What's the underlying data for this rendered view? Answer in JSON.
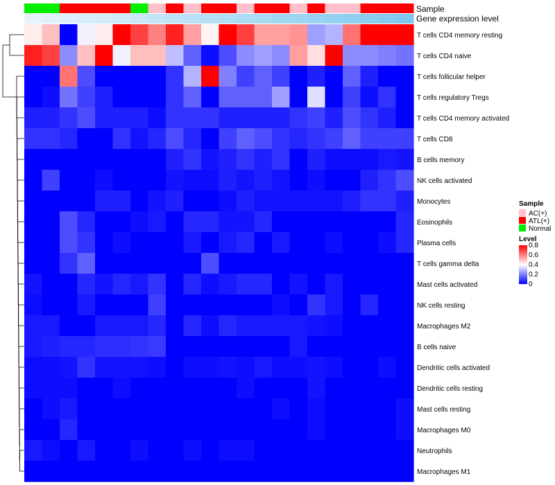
{
  "chart_data": {
    "type": "heatmap",
    "title": "",
    "annotation_rows": [
      {
        "name": "Sample",
        "kind": "categorical",
        "values": [
          "Normal",
          "Normal",
          "ATL(+)",
          "ATL(+)",
          "ATL(+)",
          "ATL(+)",
          "Normal",
          "AC(+)",
          "ATL(+)",
          "AC(+)",
          "ATL(+)",
          "ATL(+)",
          "AC(+)",
          "ATL(+)",
          "ATL(+)",
          "AC(+)",
          "ATL(+)",
          "AC(+)",
          "AC(+)",
          "ATL(+)",
          "ATL(+)",
          "ATL(+)"
        ]
      },
      {
        "name": "Gene expression level",
        "kind": "continuous",
        "values": [
          0.02,
          0.07,
          0.11,
          0.16,
          0.2,
          0.25,
          0.29,
          0.34,
          0.39,
          0.43,
          0.48,
          0.52,
          0.57,
          0.61,
          0.66,
          0.7,
          0.75,
          0.8,
          0.84,
          0.89,
          0.93,
          0.98
        ]
      }
    ],
    "rows": [
      "T cells CD4 memory resting",
      "T cells CD4 naive",
      "T cells follicular helper",
      "T cells regulatory  Tregs",
      "T cells CD4 memory activated",
      "T cells CD8",
      "B cells memory",
      "NK cells activated",
      "Monocytes",
      "Eosinophils",
      "Plasma cells",
      "T cells gamma delta",
      "Mast cells activated",
      "NK cells resting",
      "Macrophages M2",
      "B cells naive",
      "Dendritic cells activated",
      "Dendritic cells resting",
      "Mast cells resting",
      "Macrophages M0",
      "Neutrophils",
      "Macrophages M1"
    ],
    "values": [
      [
        0.43,
        0.5,
        0.0,
        0.38,
        0.43,
        0.8,
        0.7,
        0.6,
        0.75,
        0.55,
        0.42,
        0.8,
        0.7,
        0.55,
        0.55,
        0.57,
        0.25,
        0.28,
        0.62,
        0.8,
        0.8,
        0.8
      ],
      [
        0.75,
        0.7,
        0.22,
        0.5,
        0.8,
        0.38,
        0.5,
        0.5,
        0.3,
        0.15,
        0.02,
        0.12,
        0.22,
        0.25,
        0.22,
        0.55,
        0.45,
        0.8,
        0.22,
        0.22,
        0.2,
        0.18
      ],
      [
        0.0,
        0.0,
        0.62,
        0.12,
        0.0,
        0.0,
        0.0,
        0.0,
        0.08,
        0.28,
        0.8,
        0.2,
        0.1,
        0.15,
        0.1,
        0.0,
        0.05,
        0.0,
        0.15,
        0.05,
        0.0,
        0.0
      ],
      [
        0.0,
        0.02,
        0.18,
        0.1,
        0.05,
        0.0,
        0.0,
        0.0,
        0.08,
        0.15,
        0.0,
        0.15,
        0.15,
        0.15,
        0.25,
        0.0,
        0.35,
        0.0,
        0.1,
        0.02,
        0.08,
        0.0
      ],
      [
        0.05,
        0.05,
        0.08,
        0.12,
        0.05,
        0.05,
        0.05,
        0.02,
        0.08,
        0.08,
        0.08,
        0.05,
        0.05,
        0.05,
        0.05,
        0.08,
        0.1,
        0.05,
        0.12,
        0.08,
        0.05,
        0.0
      ],
      [
        0.08,
        0.08,
        0.06,
        0.0,
        0.0,
        0.08,
        0.03,
        0.06,
        0.12,
        0.06,
        0.0,
        0.1,
        0.15,
        0.12,
        0.08,
        0.06,
        0.08,
        0.1,
        0.15,
        0.1,
        0.1,
        0.1
      ],
      [
        0.0,
        0.0,
        0.0,
        0.0,
        0.0,
        0.0,
        0.0,
        0.0,
        0.05,
        0.08,
        0.03,
        0.05,
        0.08,
        0.05,
        0.08,
        0.0,
        0.05,
        0.02,
        0.02,
        0.02,
        0.04,
        0.03
      ],
      [
        0.0,
        0.1,
        0.0,
        0.0,
        0.02,
        0.0,
        0.0,
        0.0,
        0.03,
        0.02,
        0.02,
        0.05,
        0.03,
        0.05,
        0.03,
        0.0,
        0.02,
        0.0,
        0.0,
        0.05,
        0.08,
        0.12
      ],
      [
        0.0,
        0.0,
        0.0,
        0.0,
        0.05,
        0.05,
        0.0,
        0.03,
        0.05,
        0.0,
        0.0,
        0.02,
        0.05,
        0.03,
        0.03,
        0.03,
        0.03,
        0.03,
        0.05,
        0.08,
        0.08,
        0.05
      ],
      [
        0.0,
        0.0,
        0.12,
        0.06,
        0.0,
        0.0,
        0.02,
        0.04,
        0.0,
        0.06,
        0.06,
        0.03,
        0.03,
        0.06,
        0.0,
        0.0,
        0.0,
        0.0,
        0.0,
        0.0,
        0.0,
        0.06
      ],
      [
        0.0,
        0.0,
        0.12,
        0.08,
        0.0,
        0.02,
        0.0,
        0.0,
        0.0,
        0.04,
        0.0,
        0.04,
        0.06,
        0.0,
        0.04,
        0.0,
        0.0,
        0.02,
        0.0,
        0.0,
        0.02,
        0.06
      ],
      [
        0.0,
        0.0,
        0.08,
        0.15,
        0.0,
        0.0,
        0.0,
        0.0,
        0.0,
        0.0,
        0.12,
        0.0,
        0.0,
        0.0,
        0.0,
        0.0,
        0.0,
        0.0,
        0.0,
        0.0,
        0.0,
        0.0
      ],
      [
        0.03,
        0.0,
        0.0,
        0.06,
        0.03,
        0.06,
        0.04,
        0.08,
        0.0,
        0.06,
        0.02,
        0.04,
        0.06,
        0.06,
        0.0,
        0.03,
        0.0,
        0.04,
        0.0,
        0.0,
        0.0,
        0.0
      ],
      [
        0.02,
        0.0,
        0.0,
        0.04,
        0.0,
        0.0,
        0.0,
        0.1,
        0.0,
        0.0,
        0.0,
        0.0,
        0.0,
        0.0,
        0.02,
        0.0,
        0.08,
        0.04,
        0.0,
        0.06,
        0.0,
        0.0
      ],
      [
        0.04,
        0.04,
        0.0,
        0.0,
        0.04,
        0.04,
        0.04,
        0.06,
        0.0,
        0.06,
        0.02,
        0.06,
        0.04,
        0.04,
        0.04,
        0.04,
        0.03,
        0.02,
        0.0,
        0.0,
        0.0,
        0.0
      ],
      [
        0.04,
        0.05,
        0.06,
        0.06,
        0.07,
        0.07,
        0.08,
        0.09,
        0.0,
        0.0,
        0.0,
        0.0,
        0.0,
        0.0,
        0.0,
        0.04,
        0.0,
        0.0,
        0.0,
        0.0,
        0.0,
        0.0
      ],
      [
        0.02,
        0.02,
        0.03,
        0.08,
        0.03,
        0.03,
        0.03,
        0.02,
        0.0,
        0.02,
        0.02,
        0.03,
        0.02,
        0.04,
        0.02,
        0.02,
        0.03,
        0.02,
        0.0,
        0.0,
        0.02,
        0.0
      ],
      [
        0.02,
        0.02,
        0.02,
        0.0,
        0.0,
        0.02,
        0.0,
        0.0,
        0.0,
        0.0,
        0.0,
        0.0,
        0.02,
        0.0,
        0.0,
        0.0,
        0.03,
        0.0,
        0.0,
        0.0,
        0.0,
        0.0
      ],
      [
        0.0,
        0.02,
        0.04,
        0.0,
        0.0,
        0.0,
        0.0,
        0.0,
        0.0,
        0.0,
        0.0,
        0.0,
        0.0,
        0.0,
        0.02,
        0.0,
        0.02,
        0.0,
        0.0,
        0.0,
        0.0,
        0.02
      ],
      [
        0.0,
        0.0,
        0.06,
        0.0,
        0.0,
        0.0,
        0.0,
        0.0,
        0.0,
        0.0,
        0.0,
        0.0,
        0.0,
        0.0,
        0.0,
        0.0,
        0.02,
        0.0,
        0.0,
        0.0,
        0.0,
        0.02
      ],
      [
        0.04,
        0.02,
        0.0,
        0.04,
        0.0,
        0.0,
        0.02,
        0.0,
        0.0,
        0.02,
        0.0,
        0.02,
        0.02,
        0.0,
        0.0,
        0.0,
        0.0,
        0.0,
        0.0,
        0.0,
        0.0,
        0.0
      ],
      [
        0.0,
        0.0,
        0.0,
        0.0,
        0.0,
        0.0,
        0.0,
        0.0,
        0.0,
        0.0,
        0.0,
        0.0,
        0.0,
        0.0,
        0.0,
        0.0,
        0.0,
        0.0,
        0.0,
        0.0,
        0.0,
        0.0
      ]
    ],
    "row_dendrogram": true,
    "column_dendrogram": false,
    "legends": {
      "sample": {
        "title": "Sample",
        "entries": [
          "AC(+)",
          "ATL(+)",
          "Normal"
        ]
      },
      "level": {
        "title": "Level",
        "range": [
          0,
          0.8
        ],
        "ticks": [
          "0.8",
          "0.6",
          "0.4",
          "0.2",
          "0"
        ]
      }
    },
    "colors": {
      "low": "#0000ff",
      "mid": "#ffffff",
      "high": "#ff0000",
      "AC(+)": "#ffc0cb",
      "ATL(+)": "#ff0000",
      "Normal": "#00ee00",
      "expr_low": "#e8f4fb",
      "expr_high": "#7ec8ee"
    },
    "legend_placement": "right"
  }
}
